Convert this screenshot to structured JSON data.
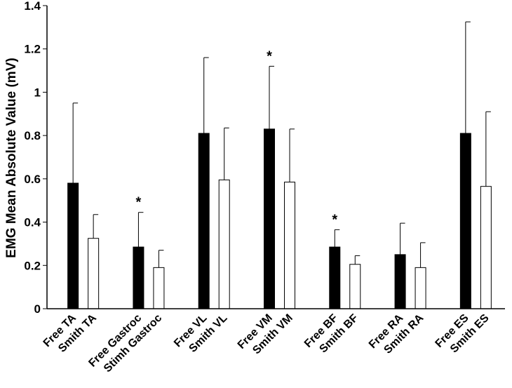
{
  "chart_data": {
    "type": "bar",
    "title": "",
    "xlabel": "",
    "ylabel": "EMG Mean Absolute Value (mV)",
    "ylim": [
      0,
      1.4
    ],
    "yticks": [
      "0",
      "0.2",
      "0.4",
      "0.6",
      "0.8",
      "1",
      "1.2",
      "1.4"
    ],
    "grid": false,
    "colors": {
      "free": "#000000",
      "smith": "#ffffff",
      "edge": "#000000"
    },
    "groups": [
      {
        "bars": [
          {
            "label": "Free TA",
            "value": 0.58,
            "error": 0.37,
            "style": "free"
          },
          {
            "label": "Smith TA",
            "value": 0.325,
            "error": 0.11,
            "style": "smith"
          }
        ]
      },
      {
        "marker": "*",
        "bars": [
          {
            "label": "Free Gastroc",
            "value": 0.285,
            "error": 0.16,
            "style": "free"
          },
          {
            "label": "Stimh Gastroc",
            "value": 0.19,
            "error": 0.08,
            "style": "smith"
          }
        ]
      },
      {
        "bars": [
          {
            "label": "Free VL",
            "value": 0.81,
            "error": 0.35,
            "style": "free"
          },
          {
            "label": "Smith VL",
            "value": 0.595,
            "error": 0.24,
            "style": "smith"
          }
        ]
      },
      {
        "marker": "*",
        "bars": [
          {
            "label": "Free VM",
            "value": 0.83,
            "error": 0.29,
            "style": "free"
          },
          {
            "label": "Smith VM",
            "value": 0.585,
            "error": 0.245,
            "style": "smith"
          }
        ]
      },
      {
        "marker": "*",
        "bars": [
          {
            "label": "Free BF",
            "value": 0.285,
            "error": 0.08,
            "style": "free"
          },
          {
            "label": "Smith BF",
            "value": 0.205,
            "error": 0.04,
            "style": "smith"
          }
        ]
      },
      {
        "bars": [
          {
            "label": "Free RA",
            "value": 0.25,
            "error": 0.145,
            "style": "free"
          },
          {
            "label": "Smith RA",
            "value": 0.19,
            "error": 0.115,
            "style": "smith"
          }
        ]
      },
      {
        "bars": [
          {
            "label": "Free ES",
            "value": 0.81,
            "error": 0.515,
            "style": "free"
          },
          {
            "label": "Smith ES",
            "value": 0.565,
            "error": 0.345,
            "style": "smith"
          }
        ]
      }
    ]
  }
}
